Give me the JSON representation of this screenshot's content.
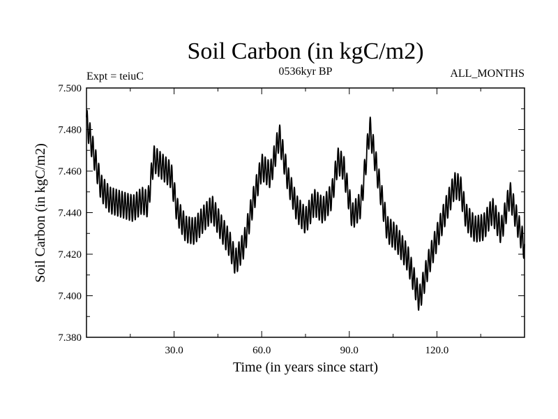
{
  "chart_data": {
    "type": "line",
    "title": "Soil Carbon (in kgC/m2)",
    "subtitle_left": "Expt = teiuC",
    "subtitle_center": "0536kyr BP",
    "subtitle_right": "ALL_MONTHS",
    "xlabel": "Time (in years since start)",
    "ylabel": "Soil Carbon (in kgC/m2)",
    "xlim": [
      0,
      150
    ],
    "ylim": [
      7.38,
      7.5
    ],
    "xticks": [
      30,
      60,
      90,
      120
    ],
    "xtick_labels": [
      "30.0",
      "60.0",
      "90.0",
      "120.0"
    ],
    "yticks": [
      7.38,
      7.4,
      7.42,
      7.44,
      7.46,
      7.48,
      7.5
    ],
    "ytick_labels": [
      "7.380",
      "7.400",
      "7.420",
      "7.440",
      "7.460",
      "7.480",
      "7.500"
    ],
    "seasonal_amplitude": 0.0065,
    "series": [
      {
        "name": "Soil Carbon",
        "color": "#000000",
        "note": "annual mean envelope; monthly values oscillate around it by +/- seasonal_amplitude",
        "x": [
          0,
          1,
          3,
          5,
          8,
          12,
          16,
          19,
          21,
          23,
          26,
          29,
          31,
          34,
          37,
          40,
          43,
          46,
          49,
          51,
          54,
          57,
          60,
          63,
          66,
          69,
          72,
          75,
          78,
          81,
          84,
          86,
          88,
          91,
          94,
          97,
          100,
          103,
          106,
          110,
          114,
          117,
          120,
          123,
          126,
          128,
          130,
          133,
          136,
          139,
          142,
          145,
          148,
          150
        ],
        "values": [
          7.484,
          7.478,
          7.465,
          7.452,
          7.446,
          7.444,
          7.442,
          7.446,
          7.444,
          7.466,
          7.462,
          7.458,
          7.441,
          7.432,
          7.431,
          7.437,
          7.442,
          7.433,
          7.425,
          7.416,
          7.425,
          7.445,
          7.462,
          7.458,
          7.477,
          7.456,
          7.442,
          7.436,
          7.445,
          7.441,
          7.448,
          7.465,
          7.462,
          7.438,
          7.444,
          7.481,
          7.456,
          7.432,
          7.428,
          7.418,
          7.398,
          7.415,
          7.428,
          7.441,
          7.453,
          7.452,
          7.438,
          7.432,
          7.433,
          7.441,
          7.431,
          7.449,
          7.433,
          7.423
        ]
      }
    ]
  }
}
